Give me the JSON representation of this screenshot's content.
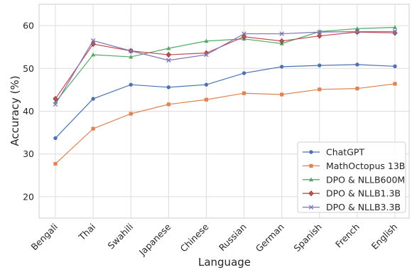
{
  "chart_data": {
    "type": "line",
    "xlabel": "Language",
    "ylabel": "Accuracy (%)",
    "categories": [
      "Bengali",
      "Thai",
      "Swahili",
      "Japanese",
      "Chinese",
      "Russian",
      "German",
      "Spanish",
      "French",
      "English"
    ],
    "ylim": [
      15,
      65
    ],
    "yticks": [
      20,
      30,
      40,
      50,
      60
    ],
    "grid": true,
    "legend_position": "bottom-right",
    "series": [
      {
        "name": "ChatGPT",
        "color": "#4c72b0",
        "marker": "circle",
        "values": [
          33.7,
          42.9,
          46.2,
          45.6,
          46.2,
          48.9,
          50.4,
          50.7,
          50.9,
          50.5
        ]
      },
      {
        "name": "MathOctopus 13B",
        "color": "#dd8452",
        "marker": "square",
        "values": [
          27.7,
          35.9,
          39.4,
          41.6,
          42.7,
          44.2,
          43.9,
          45.1,
          45.3,
          46.4
        ]
      },
      {
        "name": "DPO & NLLB600M",
        "color": "#55a868",
        "marker": "triangle",
        "values": [
          42.1,
          53.2,
          52.7,
          54.7,
          56.4,
          56.9,
          55.8,
          58.6,
          59.3,
          59.6
        ]
      },
      {
        "name": "DPO & NLLB1.3B",
        "color": "#c44e52",
        "marker": "diamond",
        "values": [
          42.9,
          55.7,
          54.1,
          53.2,
          53.6,
          57.4,
          56.4,
          57.6,
          58.5,
          58.3
        ]
      },
      {
        "name": "DPO & NLLB3.3B",
        "color": "#8172b3",
        "marker": "x",
        "values": [
          41.6,
          56.5,
          54.1,
          51.9,
          53.2,
          58.1,
          58.1,
          58.5,
          58.6,
          58.6
        ]
      }
    ]
  }
}
